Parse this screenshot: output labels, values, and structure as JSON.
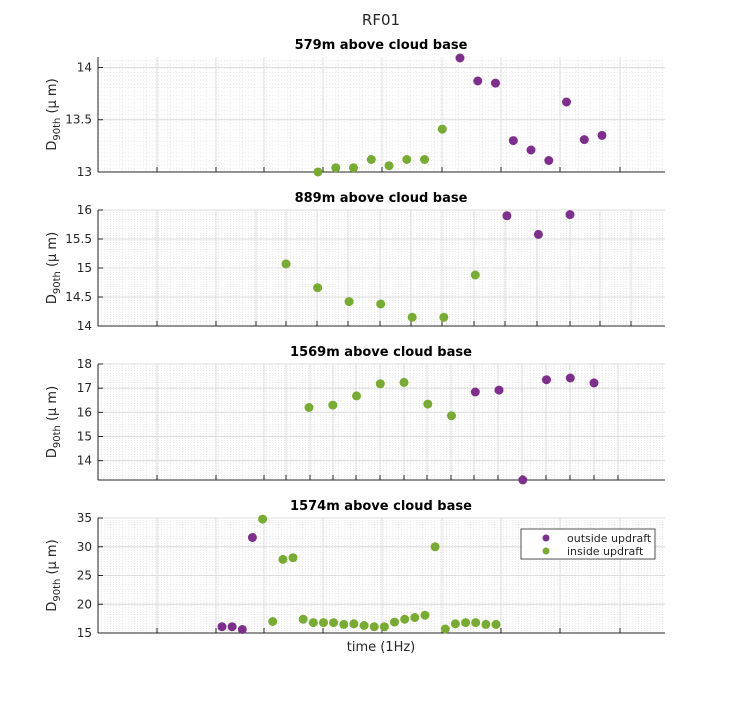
{
  "figure": {
    "title": "RF01"
  },
  "colors": {
    "outside": "#7e2f8e",
    "inside": "#77ac30"
  },
  "legend": {
    "placement": "top-right",
    "entries": [
      {
        "key": "outside",
        "label": "outside updraft"
      },
      {
        "key": "inside",
        "label": "inside updraft"
      }
    ]
  },
  "ylabel": {
    "main": "D",
    "sub": "90th",
    "unit": "(μ m)"
  },
  "xlabel": "time (1Hz)",
  "chart_data": [
    {
      "type": "scatter",
      "title": "579m above cloud base",
      "ylim": [
        13,
        14.1
      ],
      "yticks": [
        "13",
        "13.5",
        "14"
      ],
      "xlim": [
        0,
        32
      ],
      "grid": true,
      "series": [
        {
          "key": "inside",
          "x": [
            12,
            13,
            14,
            15,
            16,
            17,
            18,
            19
          ],
          "y": [
            13.0,
            13.04,
            13.04,
            13.12,
            13.06,
            13.12,
            13.12,
            13.41
          ]
        },
        {
          "key": "outside",
          "x": [
            20,
            21,
            22,
            23,
            24,
            25,
            26,
            27,
            28
          ],
          "y": [
            14.09,
            13.87,
            13.85,
            13.3,
            13.21,
            13.11,
            13.67,
            13.31,
            13.35
          ]
        }
      ]
    },
    {
      "type": "scatter",
      "title": "889m above cloud base",
      "ylim": [
        14,
        16
      ],
      "yticks": [
        "14",
        "14.5",
        "15",
        "15.5",
        "16"
      ],
      "xlim": [
        0,
        12
      ],
      "grid": true,
      "series": [
        {
          "key": "inside",
          "x": [
            2,
            3,
            4,
            5,
            6,
            7,
            8
          ],
          "y": [
            15.07,
            14.66,
            14.42,
            14.38,
            14.15,
            14.15,
            14.88
          ]
        },
        {
          "key": "outside",
          "x": [
            9,
            10,
            11
          ],
          "y": [
            15.9,
            15.58,
            15.92
          ]
        }
      ]
    },
    {
      "type": "scatter",
      "title": "1569m above cloud base",
      "ylim": [
        13.2,
        18
      ],
      "yticks": [
        "14",
        "15",
        "16",
        "17",
        "18"
      ],
      "xlim": [
        0,
        24
      ],
      "grid": true,
      "series": [
        {
          "key": "inside",
          "x": [
            9,
            10,
            11,
            12,
            13,
            14,
            15
          ],
          "y": [
            16.2,
            16.3,
            16.68,
            17.18,
            17.24,
            16.34,
            15.86
          ]
        },
        {
          "key": "outside",
          "x": [
            16,
            17,
            18,
            19,
            20,
            21
          ],
          "y": [
            16.84,
            16.92,
            13.2,
            17.35,
            17.42,
            17.22
          ]
        }
      ]
    },
    {
      "type": "scatter",
      "title": "1574m above cloud base",
      "ylim": [
        15,
        35
      ],
      "yticks": [
        "15",
        "20",
        "25",
        "30",
        "35"
      ],
      "xlim": [
        0,
        50
      ],
      "grid": true,
      "series": [
        {
          "key": "outside",
          "x": [
            11,
            12,
            13,
            14
          ],
          "y": [
            16.1,
            16.1,
            15.6,
            31.6
          ]
        },
        {
          "key": "inside",
          "x": [
            15,
            16,
            17,
            18,
            19,
            20,
            21,
            22,
            23,
            24,
            25,
            26,
            27,
            28,
            29,
            30,
            31,
            32,
            33,
            34,
            35,
            36,
            37,
            38
          ],
          "y": [
            34.8,
            17.0,
            27.8,
            28.1,
            17.4,
            16.8,
            16.8,
            16.8,
            16.5,
            16.6,
            16.3,
            16.1,
            16.1,
            16.9,
            17.4,
            17.7,
            18.1,
            30.0,
            15.7,
            16.6,
            16.8,
            16.8,
            16.5,
            16.5
          ]
        }
      ]
    }
  ]
}
